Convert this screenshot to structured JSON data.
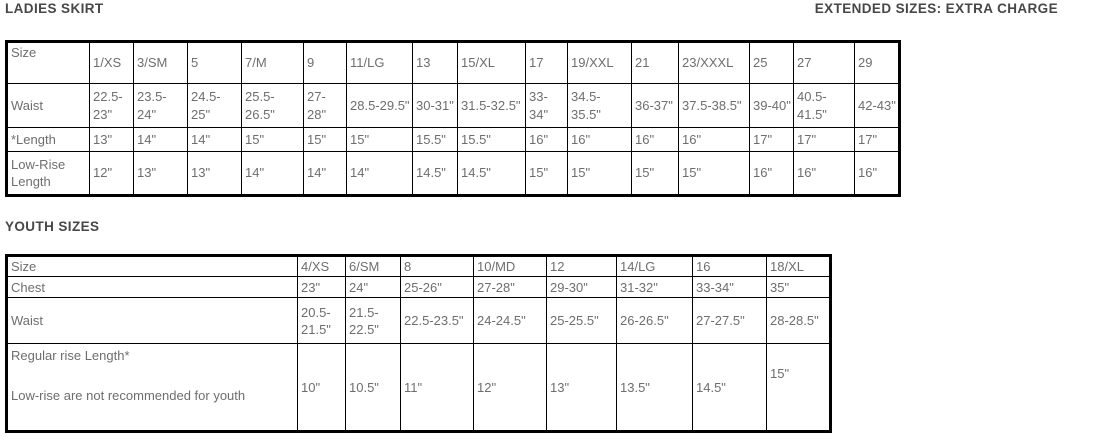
{
  "ladies": {
    "title": "LADIES SKIRT",
    "note": "EXTENDED SIZES: EXTRA CHARGE",
    "table": {
      "row_headers": [
        "Size",
        "Waist",
        "*Length",
        "Low-Rise Length"
      ],
      "sizes": [
        "1/XS",
        "3/SM",
        "5",
        "7/M",
        "9",
        "11/LG",
        "13",
        "15/XL",
        "17",
        "19/XXL",
        "21",
        "23/XXXL",
        "25",
        "27",
        "29"
      ],
      "waist": [
        "22.5-23\"",
        "23.5-24\"",
        "24.5-25\"",
        "25.5-26.5\"",
        "27-28\"",
        "28.5-29.5\"",
        "30-31\"",
        "31.5-32.5\"",
        "33-34\"",
        "34.5-35.5\"",
        "36-37\"",
        "37.5-38.5\"",
        "39-40\"",
        "40.5-41.5\"",
        "42-43\""
      ],
      "length": [
        "13\"",
        "14\"",
        "14\"",
        "15\"",
        "15\"",
        "15\"",
        "15.5\"",
        "15.5\"",
        "16\"",
        "16\"",
        "16\"",
        "16\"",
        "17\"",
        "17\"",
        "17\""
      ],
      "low_rise_length": [
        "12\"",
        "13\"",
        "13\"",
        "14\"",
        "14\"",
        "14\"",
        "14.5\"",
        "14.5\"",
        "15\"",
        "15\"",
        "15\"",
        "15\"",
        "16\"",
        "16\"",
        "16\""
      ]
    }
  },
  "youth": {
    "title": "YOUTH SIZES",
    "table": {
      "row_headers": [
        "Size",
        "Chest",
        "Waist"
      ],
      "rise_label_1": "Regular rise Length*",
      "rise_label_2": "Low-rise are not recommended for youth",
      "sizes": [
        "4/XS",
        "6/SM",
        "8",
        "10/MD",
        "12",
        "14/LG",
        "16",
        "18/XL"
      ],
      "chest": [
        "23\"",
        "24\"",
        "25-26\"",
        "27-28\"",
        "29-30\"",
        "31-32\"",
        "33-34\"",
        "35\""
      ],
      "waist": [
        "20.5-21.5\"",
        "21.5-22.5\"",
        "22.5-23.5\"",
        "24-24.5\"",
        "25-25.5\"",
        "26-26.5\"",
        "27-27.5\"",
        "28-28.5\""
      ],
      "regular_rise_length": [
        "10\"",
        "10.5\"",
        "11\"",
        "12\"",
        "13\"",
        "13.5\"",
        "14.5\"",
        "15\""
      ]
    }
  }
}
